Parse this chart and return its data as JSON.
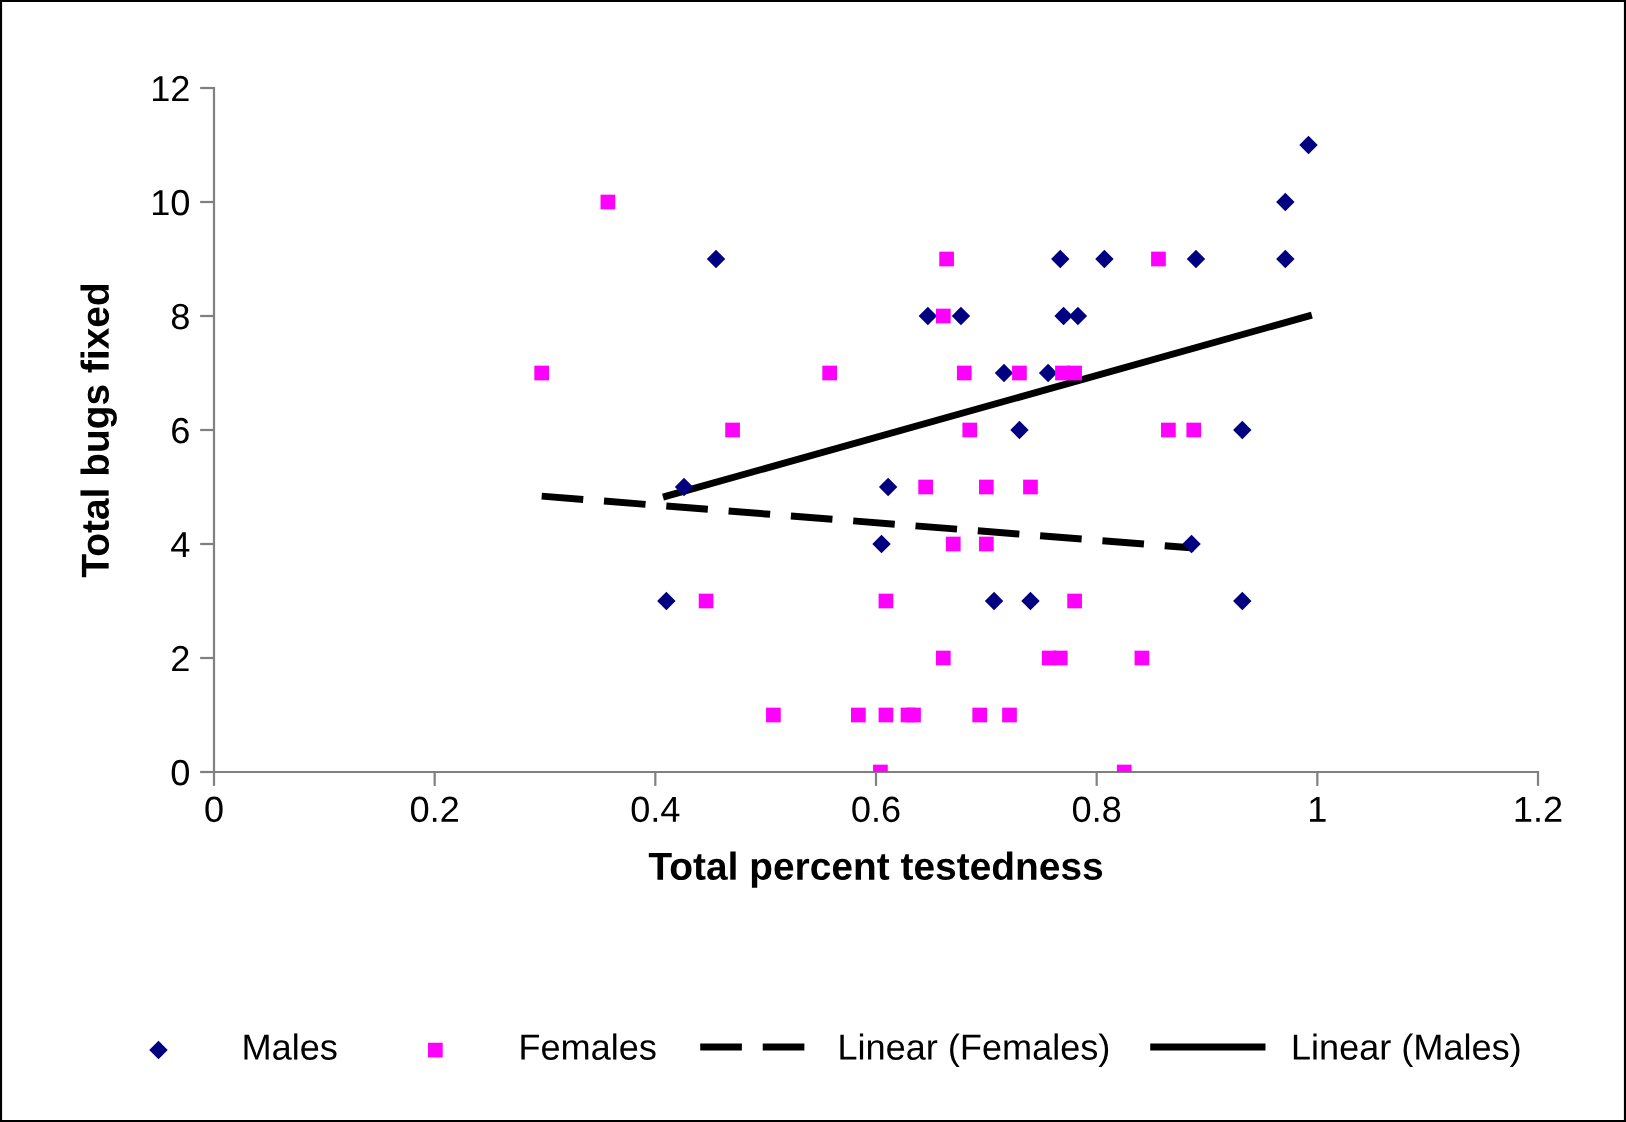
{
  "chart_data": {
    "type": "scatter",
    "xlabel": "Total percent testedness",
    "ylabel": "Total bugs fixed",
    "xlim": [
      0,
      1.2
    ],
    "xticks": [
      0,
      0.2,
      0.4,
      0.6,
      0.8,
      1,
      1.2
    ],
    "ylim": [
      0,
      12
    ],
    "yticks": [
      0,
      2,
      4,
      6,
      8,
      10,
      12
    ],
    "grid": false,
    "legend": "bottom",
    "series": [
      {
        "name": "Males",
        "marker": "diamond",
        "color": "#000080",
        "x": [
          0.41,
          0.426,
          0.455,
          0.605,
          0.611,
          0.647,
          0.677,
          0.707,
          0.716,
          0.73,
          0.74,
          0.756,
          0.767,
          0.77,
          0.783,
          0.807,
          0.886,
          0.89,
          0.932,
          0.932,
          0.971,
          0.971,
          0.992
        ],
        "values": [
          3,
          5,
          9,
          4,
          5,
          8,
          8,
          3,
          7,
          6,
          3,
          7,
          9,
          8,
          8,
          9,
          4,
          9,
          6,
          3,
          9,
          10,
          11
        ]
      },
      {
        "name": "Females",
        "marker": "square",
        "color": "#ff00ff",
        "x": [
          0.297,
          0.357,
          0.446,
          0.47,
          0.507,
          0.558,
          0.584,
          0.604,
          0.609,
          0.609,
          0.629,
          0.634,
          0.645,
          0.661,
          0.661,
          0.664,
          0.67,
          0.68,
          0.685,
          0.694,
          0.7,
          0.7,
          0.721,
          0.73,
          0.74,
          0.757,
          0.767,
          0.769,
          0.78,
          0.78,
          0.825,
          0.841,
          0.856,
          0.865,
          0.888
        ],
        "values": [
          7,
          10,
          3,
          6,
          1,
          7,
          1,
          0,
          3,
          1,
          1,
          1,
          5,
          2,
          8,
          9,
          4,
          7,
          6,
          1,
          5,
          4,
          1,
          7,
          5,
          2,
          2,
          7,
          7,
          3,
          0,
          2,
          9,
          6,
          6
        ]
      },
      {
        "name": "Linear (Females)",
        "type": "line",
        "line_style": "dashed",
        "marker": "none",
        "color": "#000000",
        "x": [
          0.297,
          0.888
        ],
        "values": [
          4.84,
          3.93
        ]
      },
      {
        "name": "Linear (Males)",
        "type": "line",
        "line_style": "solid",
        "marker": "none",
        "color": "#000000",
        "x": [
          0.41,
          0.992
        ],
        "values": [
          4.84,
          8.0
        ]
      }
    ]
  }
}
